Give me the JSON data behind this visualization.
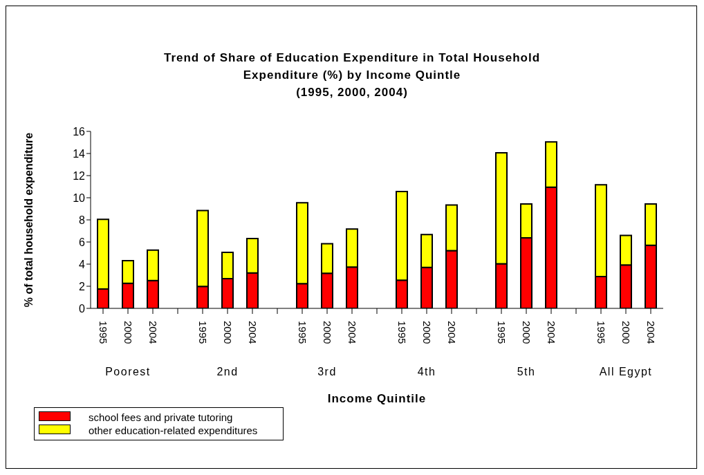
{
  "chart_data": {
    "type": "bar",
    "stacked": true,
    "title": "Trend of Share of Education Expenditure in Total Household\nExpenditure (%) by Income Quintle\n(1995, 2000, 2004)",
    "xlabel": "Income Quintile",
    "ylabel": "% of total household expenditure",
    "categories": [
      "1995",
      "2000",
      "2004",
      null,
      "1995",
      "2000",
      "2004",
      null,
      "1995",
      "2000",
      "2004",
      null,
      "1995",
      "2000",
      "2004",
      null,
      "1995",
      "2000",
      "2004",
      null,
      "1995",
      "2000",
      "2004"
    ],
    "series": [
      {
        "name": "school fees and private tutoring",
        "color": "#ff0000",
        "values": [
          1.75,
          2.26,
          2.52,
          null,
          1.99,
          2.68,
          3.21,
          null,
          2.24,
          3.17,
          3.73,
          null,
          2.54,
          3.71,
          5.22,
          null,
          4.03,
          6.37,
          10.96,
          null,
          2.87,
          3.92,
          5.7
        ]
      },
      {
        "name": "other education-related expenditures",
        "color": "#ffff00",
        "values": [
          6.3,
          2.06,
          2.74,
          null,
          6.86,
          2.39,
          3.1,
          null,
          7.3,
          2.68,
          3.44,
          null,
          8.03,
          2.96,
          4.13,
          null,
          10.04,
          3.06,
          4.09,
          null,
          8.3,
          2.68,
          3.73
        ]
      }
    ],
    "annotations": [
      "Poorest",
      "2nd",
      "3rd",
      "4th",
      "5th",
      "All Egypt"
    ],
    "ylim": [
      0,
      16
    ],
    "yticks": [
      0,
      2,
      4,
      6,
      8,
      10,
      12,
      14,
      16
    ],
    "grid": false,
    "legend": "bottom left"
  }
}
